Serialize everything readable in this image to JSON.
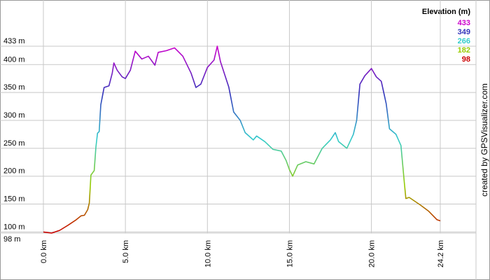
{
  "chart_data": {
    "type": "line",
    "legend_title": "Elevation (m)",
    "credit": "created by GPSVisualizer.com",
    "color_scale": [
      {
        "value": 433,
        "color": "#cc00cc"
      },
      {
        "value": 349,
        "color": "#3333bb"
      },
      {
        "value": 266,
        "color": "#33cccc"
      },
      {
        "value": 182,
        "color": "#99cc00"
      },
      {
        "value": 98,
        "color": "#cc0000"
      }
    ],
    "x": [
      0.0,
      0.5,
      1.0,
      1.5,
      2.0,
      2.3,
      2.5,
      2.7,
      2.8,
      2.9,
      3.1,
      3.2,
      3.3,
      3.4,
      3.5,
      3.7,
      4.0,
      4.2,
      4.3,
      4.5,
      4.8,
      5.0,
      5.3,
      5.6,
      6.0,
      6.4,
      6.8,
      7.0,
      7.5,
      8.0,
      8.5,
      9.0,
      9.3,
      9.6,
      10.0,
      10.4,
      10.6,
      10.8,
      11.3,
      11.6,
      12.0,
      12.3,
      12.8,
      13.0,
      13.5,
      14.0,
      14.5,
      14.8,
      15.0,
      15.2,
      15.5,
      16.0,
      16.5,
      17.0,
      17.5,
      17.8,
      18.0,
      18.5,
      18.9,
      19.1,
      19.3,
      19.6,
      20.0,
      20.3,
      20.6,
      20.9,
      21.1,
      21.5,
      21.8,
      22.0,
      22.1,
      22.3,
      23.0,
      23.5,
      24.0,
      24.2
    ],
    "series": [
      {
        "values": [
          100,
          98,
          103,
          112,
          122,
          129,
          130,
          140,
          152,
          202,
          210,
          252,
          277,
          280,
          328,
          359,
          362,
          385,
          403,
          390,
          378,
          375,
          390,
          424,
          410,
          415,
          399,
          422,
          425,
          430,
          415,
          385,
          359,
          365,
          395,
          408,
          433,
          405,
          360,
          315,
          300,
          278,
          265,
          272,
          262,
          248,
          245,
          228,
          212,
          200,
          220,
          226,
          222,
          250,
          265,
          278,
          262,
          250,
          275,
          300,
          365,
          380,
          393,
          378,
          370,
          330,
          285,
          275,
          255,
          190,
          160,
          162,
          148,
          137,
          122,
          120
        ]
      }
    ],
    "xlim": [
      0,
      24.2
    ],
    "ylim": [
      98,
      433
    ],
    "xticks": [
      {
        "value": 0,
        "label": "0.0 km"
      },
      {
        "value": 5,
        "label": "5.0 km"
      },
      {
        "value": 10,
        "label": "10.0 km"
      },
      {
        "value": 15,
        "label": "15.0 km"
      },
      {
        "value": 20,
        "label": "20.0 km"
      },
      {
        "value": 24.2,
        "label": "24.2 km"
      }
    ],
    "yticks": [
      {
        "value": 98,
        "label": "98 m"
      },
      {
        "value": 100,
        "label": "100 m"
      },
      {
        "value": 150,
        "label": "150 m"
      },
      {
        "value": 200,
        "label": "200 m"
      },
      {
        "value": 250,
        "label": "250 m"
      },
      {
        "value": 300,
        "label": "300 m"
      },
      {
        "value": 350,
        "label": "350 m"
      },
      {
        "value": 400,
        "label": "400 m"
      },
      {
        "value": 433,
        "label": "433 m"
      }
    ],
    "grid": true
  }
}
